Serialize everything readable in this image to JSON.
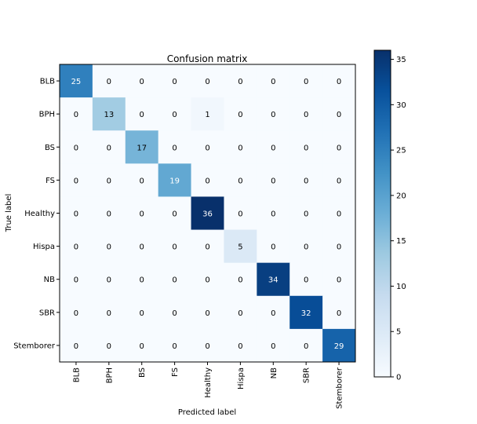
{
  "chart_data": {
    "type": "heatmap",
    "title": "Confusion matrix",
    "xlabel": "Predicted label",
    "ylabel": "True label",
    "x_categories": [
      "BLB",
      "BPH",
      "BS",
      "FS",
      "Healthy",
      "Hispa",
      "NB",
      "SBR",
      "Stemborer"
    ],
    "y_categories": [
      "BLB",
      "BPH",
      "BS",
      "FS",
      "Healthy",
      "Hispa",
      "NB",
      "SBR",
      "Stemborer"
    ],
    "values": [
      [
        25,
        0,
        0,
        0,
        0,
        0,
        0,
        0,
        0
      ],
      [
        0,
        13,
        0,
        0,
        1,
        0,
        0,
        0,
        0
      ],
      [
        0,
        0,
        17,
        0,
        0,
        0,
        0,
        0,
        0
      ],
      [
        0,
        0,
        0,
        19,
        0,
        0,
        0,
        0,
        0
      ],
      [
        0,
        0,
        0,
        0,
        36,
        0,
        0,
        0,
        0
      ],
      [
        0,
        0,
        0,
        0,
        0,
        5,
        0,
        0,
        0
      ],
      [
        0,
        0,
        0,
        0,
        0,
        0,
        34,
        0,
        0
      ],
      [
        0,
        0,
        0,
        0,
        0,
        0,
        0,
        32,
        0
      ],
      [
        0,
        0,
        0,
        0,
        0,
        0,
        0,
        0,
        29
      ]
    ],
    "colorbar": {
      "colormap": "Blues",
      "range": [
        0,
        36
      ],
      "ticks": [
        "0",
        "5",
        "10",
        "15",
        "20",
        "25",
        "30",
        "35"
      ]
    },
    "grid": false
  }
}
